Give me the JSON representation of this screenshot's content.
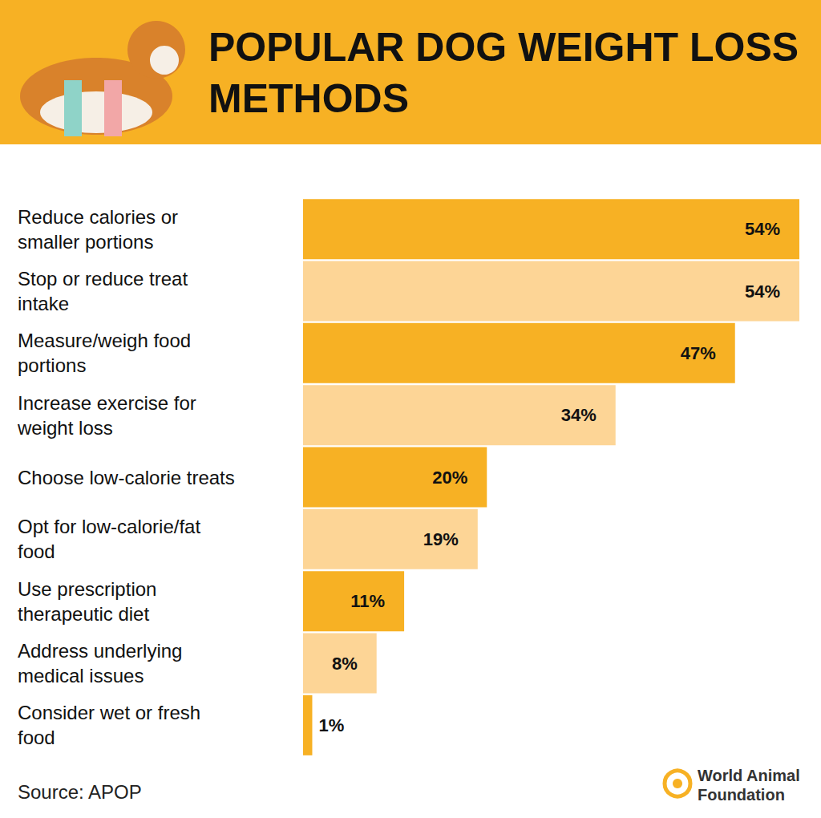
{
  "chart_data": {
    "type": "bar",
    "title": "POPULAR DOG WEIGHT LOSS METHODS",
    "source": "Source: APOP",
    "annotations": [
      "World Animal Foundation"
    ],
    "orientation": "horizontal",
    "categories": [
      "Reduce calories or smaller portions",
      "Stop or reduce treat intake",
      "Measure/weigh food portions",
      "Increase exercise for weight loss",
      "Choose low-calorie treats",
      "Opt for low-calorie/fat food",
      "Use prescription therapeutic diet",
      "Address underlying medical issues",
      "Consider wet or fresh food"
    ],
    "values": [
      54,
      54,
      47,
      34,
      20,
      19,
      11,
      8,
      1
    ],
    "value_labels": [
      "54%",
      "54%",
      "47%",
      "34%",
      "20%",
      "19%",
      "11%",
      "8%",
      "1%"
    ],
    "colors": [
      "#f7b124",
      "#fdd596",
      "#f7b124",
      "#fdd596",
      "#f7b124",
      "#fdd596",
      "#f7b124",
      "#fdd596",
      "#f7b124"
    ],
    "xlim": [
      0,
      54
    ],
    "grid": false,
    "tick_labels": false,
    "data_labels": true
  }
}
